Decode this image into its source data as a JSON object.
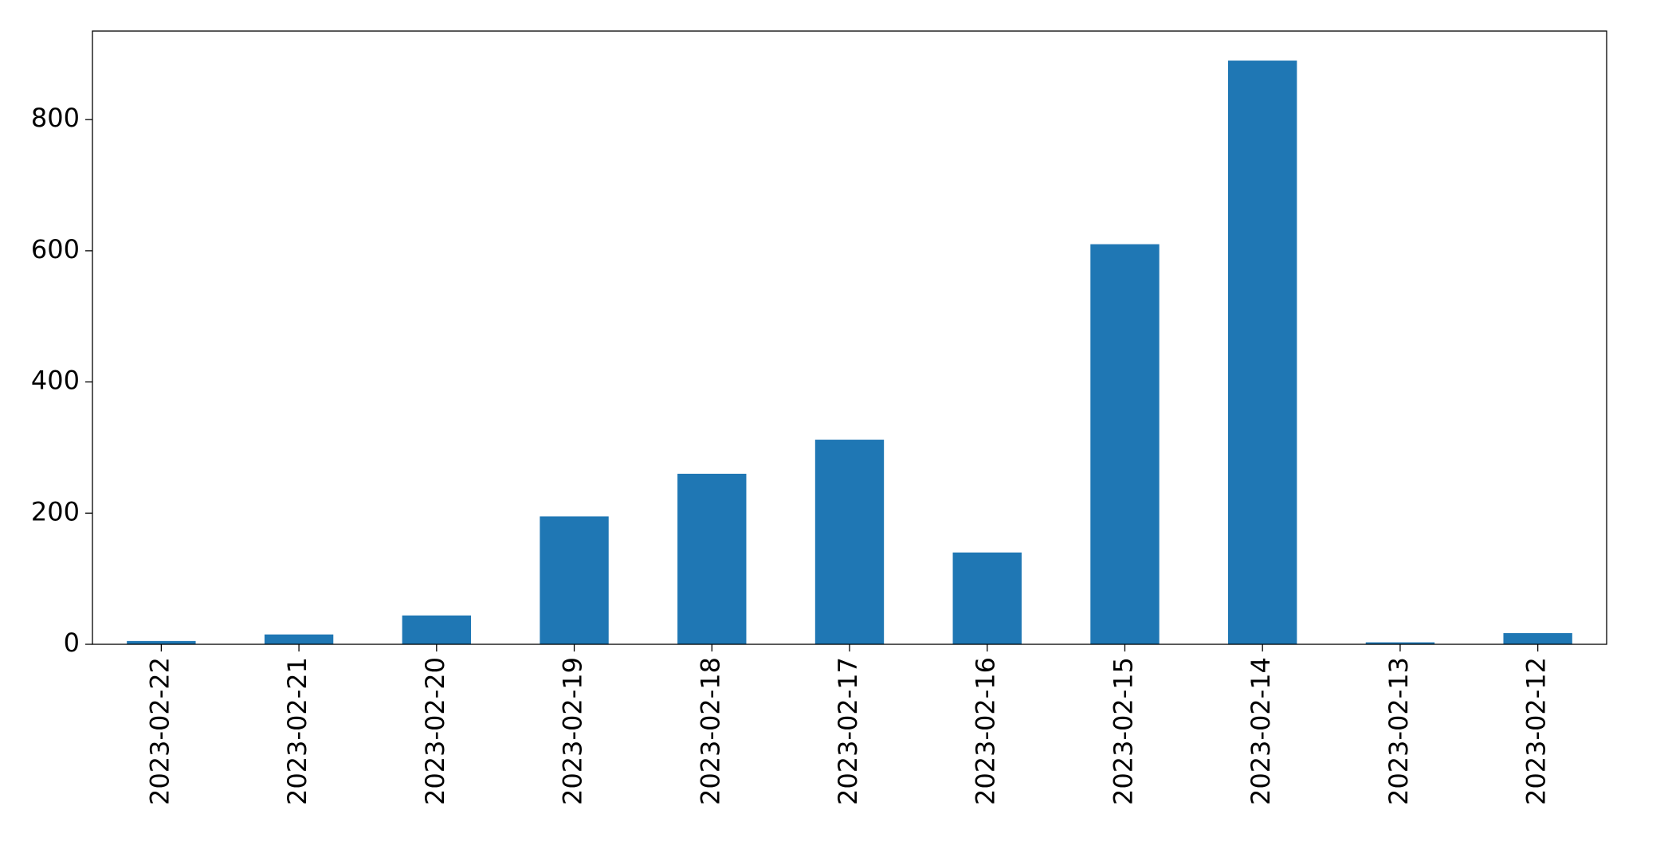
{
  "chart_data": {
    "type": "bar",
    "categories": [
      "2023-02-22",
      "2023-02-21",
      "2023-02-20",
      "2023-02-19",
      "2023-02-18",
      "2023-02-17",
      "2023-02-16",
      "2023-02-15",
      "2023-02-14",
      "2023-02-13",
      "2023-02-12"
    ],
    "values": [
      5,
      15,
      44,
      195,
      260,
      312,
      140,
      610,
      890,
      3,
      17
    ],
    "color": "#1f77b4",
    "ylim": [
      0,
      935
    ],
    "yticks": [
      0,
      200,
      400,
      600,
      800
    ],
    "grid": false
  }
}
